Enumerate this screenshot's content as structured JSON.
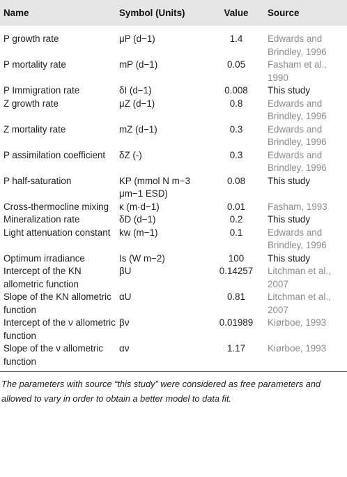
{
  "headers": {
    "name": "Name",
    "symbol": "Symbol (Units)",
    "value": "Value",
    "source": "Source"
  },
  "rows": [
    {
      "name": "P growth rate",
      "symbol": "μP (d−1)",
      "value": "1.4",
      "source": "Edwards and Brindley, 1996",
      "source_style": "grey"
    },
    {
      "name": "P mortality rate",
      "symbol": "mP (d−1)",
      "value": "0.05",
      "source": "Fasham et al., 1990",
      "source_style": "grey"
    },
    {
      "name": "P Immigration rate",
      "symbol": "δI (d−1)",
      "value": "0.008",
      "source": "This study",
      "source_style": "black"
    },
    {
      "name": "Z growth rate",
      "symbol": "μZ (d−1)",
      "value": "0.8",
      "source": "Edwards and Brindley, 1996",
      "source_style": "grey"
    },
    {
      "name": "Z mortality rate",
      "symbol": "mZ (d−1)",
      "value": "0.3",
      "source": "Edwards and Brindley, 1996",
      "source_style": "grey"
    },
    {
      "name": "P assimilation coefficient",
      "symbol": "δZ (-)",
      "value": "0.3",
      "source": "Edwards and Brindley, 1996",
      "source_style": "grey"
    },
    {
      "name": "P half-saturation",
      "symbol": "KP (mmol N m−3 μm−1 ESD)",
      "value": "0.08",
      "source": "This study",
      "source_style": "black"
    },
    {
      "name": "Cross-thermocline mixing",
      "symbol": "κ (m·d−1)",
      "value": "0.01",
      "source": "Fasham, 1993",
      "source_style": "grey"
    },
    {
      "name": "Mineralization rate",
      "symbol": "δD (d−1)",
      "value": "0.2",
      "source": "This study",
      "source_style": "black"
    },
    {
      "name": "Light attenuation constant",
      "symbol": "kw (m−1)",
      "value": "0.1",
      "source": "Edwards and Brindley, 1996",
      "source_style": "grey"
    },
    {
      "name": "Optimum irradiance",
      "symbol": "Is (W m−2)",
      "value": "100",
      "source": "This study",
      "source_style": "black"
    },
    {
      "name": "Intercept of the KN allometric function",
      "symbol": "βU",
      "value": "0.14257",
      "source": "Litchman et al., 2007",
      "source_style": "grey"
    },
    {
      "name": "Slope of the KN allometric function",
      "symbol": "αU",
      "value": "0.81",
      "source": "Litchman et al., 2007",
      "source_style": "grey"
    },
    {
      "name": "Intercept of the ν allometric function",
      "symbol": "βν",
      "value": "0.01989",
      "source": "Kiørboe, 1993",
      "source_style": "grey"
    },
    {
      "name": "Slope of the ν allometric function",
      "symbol": "αν",
      "value": "1.17",
      "source": "Kiørboe, 1993",
      "source_style": "grey"
    }
  ],
  "footnote": "The parameters with source “this study” were considered as free parameters and allowed to vary in order to obtain a better model to data fit."
}
